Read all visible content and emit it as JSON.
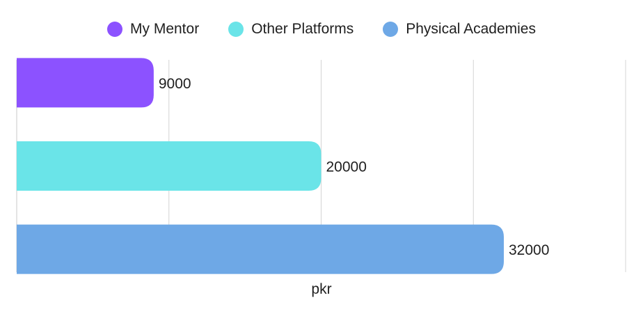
{
  "chart_data": {
    "type": "bar",
    "orientation": "horizontal",
    "categories": [
      "My Mentor",
      "Other Platforms",
      "Physical Academies"
    ],
    "values": [
      9000,
      20000,
      32000
    ],
    "colors": [
      "#8c52ff",
      "#6ae4e8",
      "#6ea8e6"
    ],
    "xlabel": "pkr",
    "xlim": [
      0,
      40000
    ],
    "gridlines": [
      10000,
      20000,
      30000,
      40000
    ],
    "grid": true,
    "legend_position": "top"
  }
}
